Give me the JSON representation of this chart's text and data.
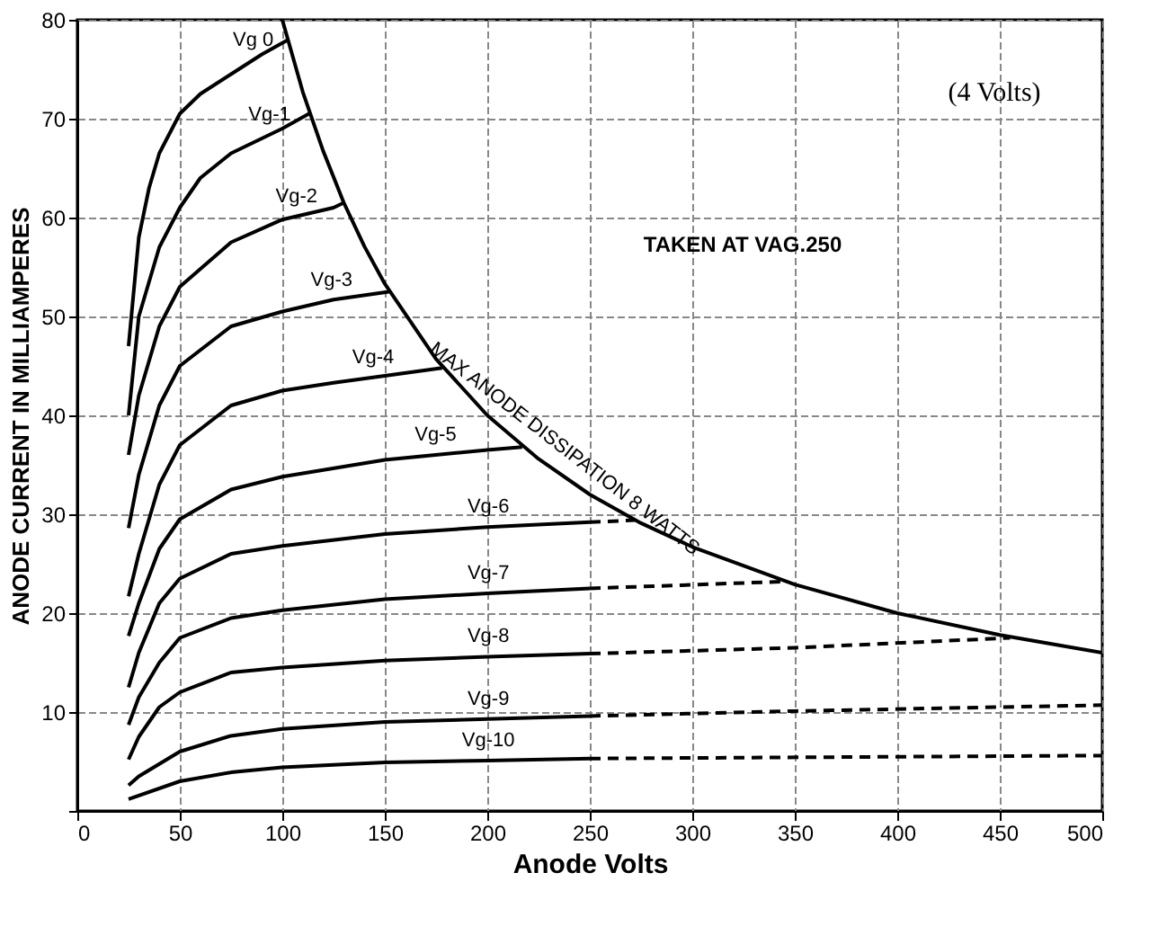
{
  "chart_data": {
    "type": "line",
    "xlabel": "Anode Volts",
    "ylabel": "ANODE CURRENT IN MILLIAMPERES",
    "annotations": [
      "(4 Volts)",
      "TAKEN AT VAG.250"
    ],
    "xlim": [
      0,
      500
    ],
    "ylim": [
      0,
      80
    ],
    "xticks": [
      0,
      50,
      100,
      150,
      200,
      250,
      300,
      350,
      400,
      450,
      500
    ],
    "yticks": [
      {
        "value": 0,
        "label": null
      },
      10,
      20,
      30,
      40,
      50,
      60,
      70,
      80
    ],
    "grid": true,
    "series": [
      {
        "name": "Vg 0",
        "color": "#000000",
        "line_style": "solid",
        "x": [
          25,
          30,
          35,
          40,
          50,
          60,
          75,
          90,
          103
        ],
        "values": [
          47,
          58,
          63,
          66.5,
          70.5,
          72.5,
          74.5,
          76.5,
          78
        ]
      },
      {
        "name": "Vg-1",
        "color": "#000000",
        "line_style": "solid",
        "x": [
          25,
          30,
          40,
          50,
          60,
          75,
          100,
          113
        ],
        "values": [
          40,
          50,
          57,
          61,
          64,
          66.5,
          69,
          70.5
        ]
      },
      {
        "name": "Vg-2",
        "color": "#000000",
        "line_style": "solid",
        "x": [
          25,
          30,
          40,
          50,
          75,
          100,
          125,
          130
        ],
        "values": [
          36,
          42,
          49,
          53,
          57.5,
          59.8,
          61,
          61.5
        ]
      },
      {
        "name": "Vg-3",
        "color": "#000000",
        "line_style": "solid",
        "x": [
          25,
          30,
          40,
          50,
          75,
          100,
          125,
          152
        ],
        "values": [
          28.6,
          34,
          41,
          45,
          49,
          50.5,
          51.7,
          52.5
        ]
      },
      {
        "name": "Vg-4",
        "color": "#000000",
        "line_style": "solid",
        "x": [
          25,
          30,
          40,
          50,
          75,
          100,
          125,
          150,
          178
        ],
        "values": [
          21.7,
          26,
          33,
          37,
          41,
          42.5,
          43.3,
          44,
          44.8
        ]
      },
      {
        "name": "Vg-5",
        "color": "#000000",
        "line_style": "solid",
        "x": [
          25,
          30,
          40,
          50,
          75,
          100,
          150,
          200,
          217
        ],
        "values": [
          17.7,
          21,
          26.5,
          29.5,
          32.5,
          33.8,
          35.5,
          36.5,
          36.8
        ]
      },
      {
        "name": "Vg-6",
        "color": "#000000",
        "line_style": "solid",
        "x": [
          25,
          30,
          40,
          50,
          75,
          100,
          150,
          200,
          250
        ],
        "values": [
          12.5,
          16,
          21,
          23.5,
          26,
          26.8,
          28,
          28.7,
          29.2
        ]
      },
      {
        "color": "#000000",
        "line_style": "dashed",
        "x": [
          250,
          272
        ],
        "values": [
          29.2,
          29.4
        ]
      },
      {
        "name": "Vg-7",
        "color": "#000000",
        "line_style": "solid",
        "x": [
          25,
          30,
          40,
          50,
          75,
          100,
          150,
          200,
          250
        ],
        "values": [
          8.7,
          11.5,
          15,
          17.5,
          19.5,
          20.3,
          21.4,
          22,
          22.5
        ]
      },
      {
        "color": "#000000",
        "line_style": "dashed",
        "x": [
          250,
          345
        ],
        "values": [
          22.5,
          23.2
        ]
      },
      {
        "name": "Vg-8",
        "color": "#000000",
        "line_style": "solid",
        "x": [
          25,
          30,
          40,
          50,
          75,
          100,
          150,
          200,
          250
        ],
        "values": [
          5.2,
          7.5,
          10.5,
          12,
          14,
          14.5,
          15.2,
          15.6,
          15.9
        ]
      },
      {
        "color": "#000000",
        "line_style": "dashed",
        "x": [
          250,
          350,
          455
        ],
        "values": [
          15.9,
          16.5,
          17.5
        ]
      },
      {
        "name": "Vg-9",
        "color": "#000000",
        "line_style": "solid",
        "x": [
          25,
          30,
          50,
          75,
          100,
          150,
          200,
          250
        ],
        "values": [
          2.6,
          3.5,
          6,
          7.6,
          8.3,
          9,
          9.3,
          9.6
        ]
      },
      {
        "color": "#000000",
        "line_style": "dashed",
        "x": [
          250,
          350,
          500
        ],
        "values": [
          9.6,
          10.1,
          10.7
        ]
      },
      {
        "name": "Vg-10",
        "color": "#000000",
        "line_style": "solid",
        "x": [
          25,
          50,
          75,
          100,
          150,
          200,
          250
        ],
        "values": [
          1.2,
          3,
          3.9,
          4.4,
          4.9,
          5.1,
          5.3
        ]
      },
      {
        "color": "#000000",
        "line_style": "dashed",
        "x": [
          250,
          500
        ],
        "values": [
          5.3,
          5.6
        ]
      },
      {
        "name": "MAX ANODE DISSIPATION 8 WATTS",
        "color": "#000000",
        "line_style": "solid",
        "x": [
          100,
          110,
          120,
          130,
          140,
          150,
          175,
          200,
          225,
          250,
          275,
          300,
          350,
          400,
          450,
          500
        ],
        "values": [
          80,
          72.7,
          66.7,
          61.5,
          57.1,
          53.3,
          45.7,
          40,
          35.6,
          32,
          29.1,
          26.7,
          22.9,
          20,
          17.8,
          16
        ]
      }
    ]
  }
}
